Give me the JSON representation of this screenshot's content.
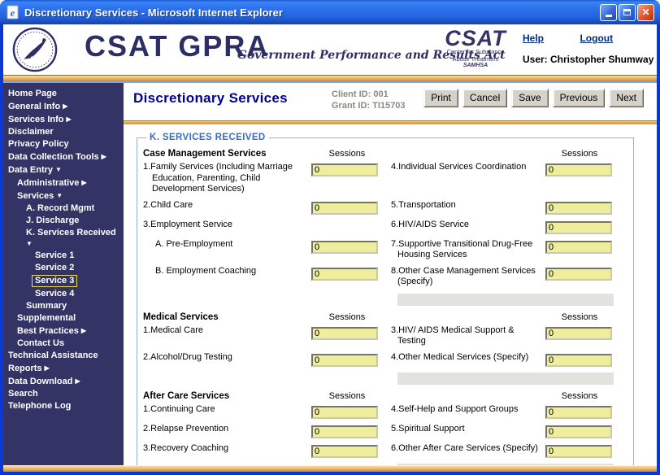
{
  "window": {
    "title": "Discretionary Services - Microsoft Internet Explorer"
  },
  "header": {
    "brand": "CSAT GPRA",
    "brand_sub": "Government Performance and Results Act",
    "csat_logo": {
      "name": "CSAT",
      "line1": "Center for Substance",
      "line2": "Abuse Treatment",
      "line3": "SAMHSA"
    },
    "help_label": "Help",
    "logout_label": "Logout",
    "user_label": "User: Christopher Shumway"
  },
  "sidebar": {
    "items": [
      {
        "label": "Home Page",
        "level": 0
      },
      {
        "label": "General Info",
        "level": 0,
        "arrow": "right"
      },
      {
        "label": "Services Info",
        "level": 0,
        "arrow": "right"
      },
      {
        "label": "Disclaimer",
        "level": 0
      },
      {
        "label": "Privacy Policy",
        "level": 0
      },
      {
        "label": "Data Collection Tools",
        "level": 0,
        "arrow": "right"
      },
      {
        "label": "Data Entry",
        "level": 0,
        "arrow": "down"
      },
      {
        "label": "Administrative",
        "level": 1,
        "arrow": "right"
      },
      {
        "label": "Services",
        "level": 1,
        "arrow": "down"
      },
      {
        "label": "A. Record Mgmt",
        "level": 2
      },
      {
        "label": "J. Discharge",
        "level": 2
      },
      {
        "label": "K. Services Received",
        "level": 2,
        "arrow": "down",
        "arrow_wrap": true
      },
      {
        "label": "Service 1",
        "level": 3
      },
      {
        "label": "Service 2",
        "level": 3
      },
      {
        "label": "Service 3",
        "level": 3,
        "selected": true
      },
      {
        "label": "Service 4",
        "level": 3
      },
      {
        "label": "Summary",
        "level": 2
      },
      {
        "label": "Supplemental",
        "level": 1
      },
      {
        "label": "Best Practices",
        "level": 1,
        "arrow": "right"
      },
      {
        "label": "Contact Us",
        "level": 1
      },
      {
        "label": "Technical Assistance",
        "level": 0
      },
      {
        "label": "Reports",
        "level": 0,
        "arrow": "right"
      },
      {
        "label": "Data Download",
        "level": 0,
        "arrow": "right"
      },
      {
        "label": "Search",
        "level": 0
      },
      {
        "label": "Telephone Log",
        "level": 0
      }
    ]
  },
  "content": {
    "page_title": "Discretionary Services",
    "client_id": "Client ID: 001",
    "grant_id": "Grant ID: TI15703",
    "buttons": [
      "Print",
      "Cancel",
      "Save",
      "Previous",
      "Next"
    ],
    "fieldset_legend": "K. SERVICES RECEIVED",
    "sessions_label": "Sessions",
    "sections": [
      {
        "title": "Case Management Services",
        "rows": [
          {
            "left_label": "1.Family Services (Including Marriage Education, Parenting, Child Development Services)",
            "left_value": "0",
            "right_label": "4.Individual Services Coordination",
            "right_value": "0"
          },
          {
            "left_label": "2.Child Care",
            "left_value": "0",
            "right_label": "5.Transportation",
            "right_value": "0"
          },
          {
            "left_label": "3.Employment Service",
            "left_value": null,
            "right_label": "6.HIV/AIDS Service",
            "right_value": "0"
          },
          {
            "left_label": "A. Pre-Employment",
            "left_indent": true,
            "left_value": "0",
            "right_label": "7.Supportive Transitional Drug-Free Housing Services",
            "right_value": "0"
          },
          {
            "left_label": "B. Employment Coaching",
            "left_indent": true,
            "left_value": "0",
            "right_label": "8.Other Case Management Services (Specify)",
            "right_value": "0"
          }
        ],
        "specify_bar": true
      },
      {
        "title": "Medical Services",
        "rows": [
          {
            "left_label": "1.Medical Care",
            "left_value": "0",
            "right_label": "3.HIV/ AIDS Medical Support & Testing",
            "right_value": "0"
          },
          {
            "left_label": "2.Alcohol/Drug Testing",
            "left_value": "0",
            "right_label": "4.Other Medical Services (Specify)",
            "right_value": "0"
          }
        ],
        "specify_bar": true
      },
      {
        "title": "After Care Services",
        "rows": [
          {
            "left_label": "1.Continuing Care",
            "left_value": "0",
            "right_label": "4.Self-Help and Support Groups",
            "right_value": "0"
          },
          {
            "left_label": "2.Relapse Prevention",
            "left_value": "0",
            "right_label": "5.Spiritual Support",
            "right_value": "0"
          },
          {
            "left_label": "3.Recovery Coaching",
            "left_value": "0",
            "right_label": "6.Other After Care Services (Specify)",
            "right_value": "0"
          }
        ],
        "specify_bar": true
      }
    ]
  },
  "colors": {
    "sidebar_bg": "#333366",
    "brand_navy": "#2E2E66",
    "input_yellow": "#EEEE9E",
    "accent_orange": "#E2A452",
    "selection_yellow": "#F0E048",
    "page_title_blue": "#000099",
    "fieldset_border_blue": "#8FB1DA",
    "link_navy": "#002B7F",
    "titlebar_blue": "#2E74EF"
  }
}
